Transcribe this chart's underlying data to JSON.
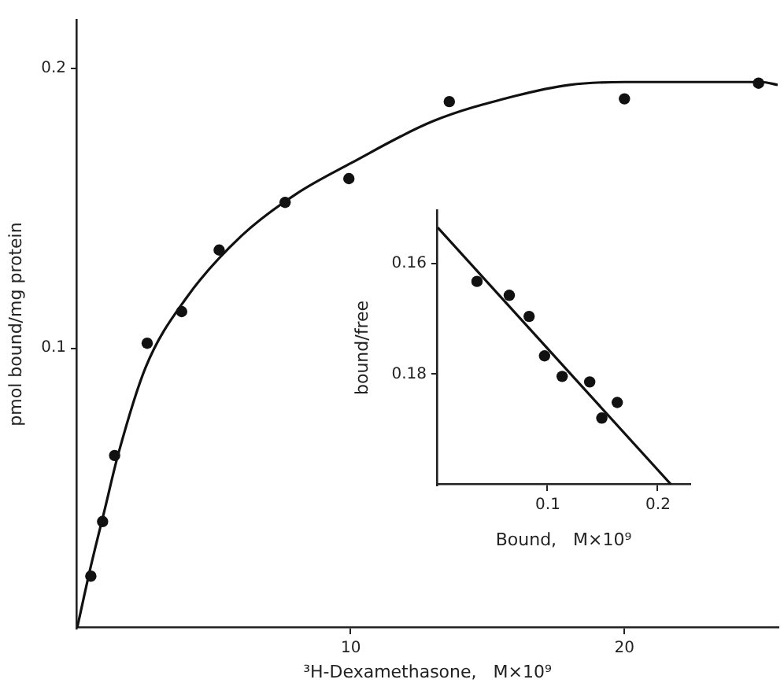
{
  "chart_data": [
    {
      "type": "scatter",
      "xlabel": "³H-Dexamethasone,   M×10⁹",
      "ylabel": "pmol bound/mg protein",
      "xlim": [
        0,
        25.6
      ],
      "ylim": [
        0,
        0.217
      ],
      "xticks": [
        10,
        20
      ],
      "yticks": [
        0.1,
        0.2
      ],
      "grid": false,
      "series": [
        {
          "type": "scatter",
          "marker": "circle",
          "color": "#111111",
          "x": [
            0.5,
            0.93,
            1.37,
            2.56,
            3.82,
            5.19,
            7.6,
            9.93,
            13.6,
            20.0,
            24.9
          ],
          "values": [
            0.0185,
            0.038,
            0.0616,
            0.1017,
            0.113,
            0.135,
            0.152,
            0.1605,
            0.188,
            0.189,
            0.1946
          ]
        },
        {
          "type": "line",
          "marker": "none",
          "color": "#111111",
          "x": [
            0,
            0.5,
            1,
            1.5,
            2.5,
            4,
            6,
            8,
            10,
            13,
            16,
            18,
            20,
            25,
            25.6
          ],
          "values": [
            0,
            0.022,
            0.042,
            0.062,
            0.093,
            0.118,
            0.14,
            0.155,
            0.166,
            0.181,
            0.19,
            0.194,
            0.195,
            0.195,
            0.194
          ]
        }
      ]
    },
    {
      "type": "scatter",
      "xlabel": "Bound,   M×10⁹",
      "ylabel": "bound/free",
      "xlim": [
        0,
        0.2286
      ],
      "ylim": [
        0.1999,
        0.1506
      ],
      "xticks": [
        0.1,
        0.2
      ],
      "yticks": [
        0.16,
        0.18
      ],
      "grid": false,
      "series": [
        {
          "type": "scatter",
          "marker": "circle",
          "color": "#111111",
          "x": [
            0.0357,
            0.065,
            0.083,
            0.097,
            0.113,
            0.138,
            0.149,
            0.163
          ],
          "values": [
            0.1633,
            0.1658,
            0.1696,
            0.1767,
            0.1804,
            0.1814,
            0.1879,
            0.1851
          ]
        },
        {
          "type": "line",
          "marker": "none",
          "color": "#111111",
          "x": [
            0,
            0.212
          ],
          "values": [
            0.1536,
            0.1999
          ]
        }
      ]
    }
  ]
}
